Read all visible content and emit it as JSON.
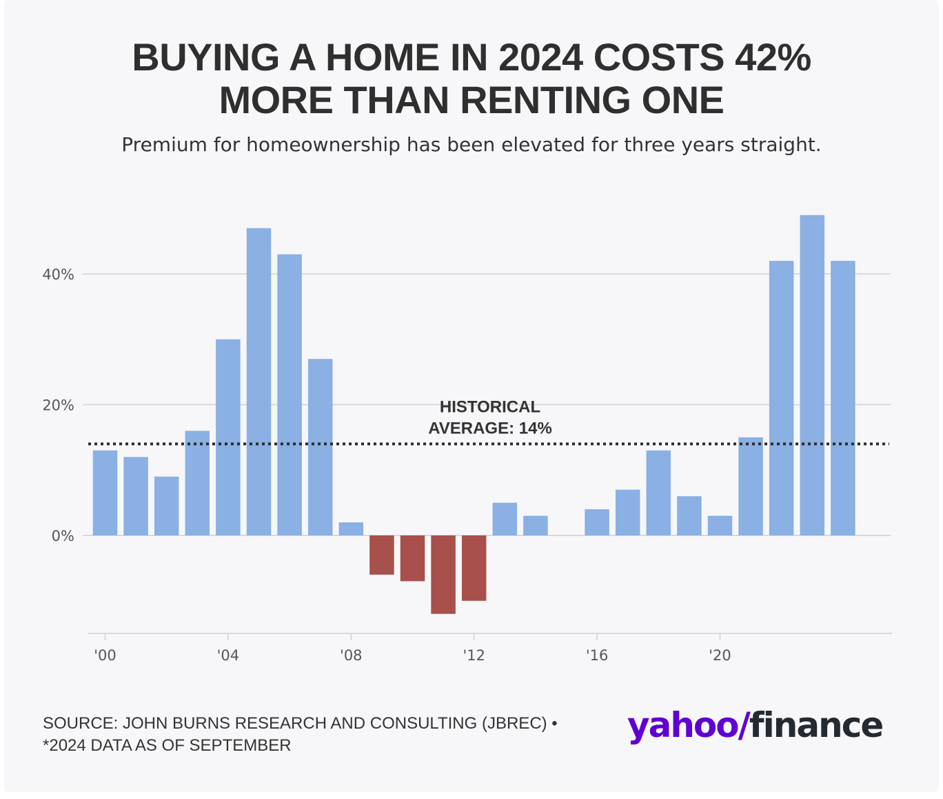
{
  "header": {
    "title_line1": "BUYING A HOME IN 2024 COSTS 42%",
    "title_line2": "MORE THAN RENTING ONE",
    "subtitle": "Premium for homeownership has been elevated for three years straight."
  },
  "chart_data": {
    "type": "bar",
    "x": [
      2000,
      2001,
      2002,
      2003,
      2004,
      2005,
      2006,
      2007,
      2008,
      2009,
      2010,
      2011,
      2012,
      2013,
      2014,
      2015,
      2016,
      2017,
      2018,
      2019,
      2020,
      2021,
      2022,
      2023,
      2024
    ],
    "values": [
      13,
      12,
      9,
      16,
      30,
      47,
      43,
      27,
      2,
      -6,
      -7,
      -12,
      -10,
      5,
      3,
      0,
      4,
      7,
      13,
      6,
      3,
      15,
      42,
      49,
      42
    ],
    "unit": "%",
    "ylim": [
      -15,
      50
    ],
    "yticks": [
      0,
      20,
      40
    ],
    "ytick_labels": [
      "0%",
      "20%",
      "40%"
    ],
    "xticks": [
      2000,
      2004,
      2008,
      2012,
      2016,
      2020
    ],
    "xtick_labels": [
      "'00",
      "'04",
      "'08",
      "'12",
      "'16",
      "'20"
    ],
    "reference_line": {
      "value": 14,
      "label_line1": "HISTORICAL",
      "label_line2": "AVERAGE: 14%",
      "style": "dotted"
    },
    "colors": {
      "positive": "#8ab0e4",
      "negative": "#a8504b",
      "grid": "#d9d9dc",
      "reference": "#2b2b2b"
    },
    "grid": true,
    "legend": "none"
  },
  "footer": {
    "source_line1": "SOURCE: JOHN BURNS RESEARCH AND CONSULTING (JBREC) •",
    "source_line2": "*2024 DATA AS OF SEPTEMBER"
  },
  "logo": {
    "text_yahoo": "yahoo",
    "text_slash": "/",
    "text_finance": "finance"
  }
}
